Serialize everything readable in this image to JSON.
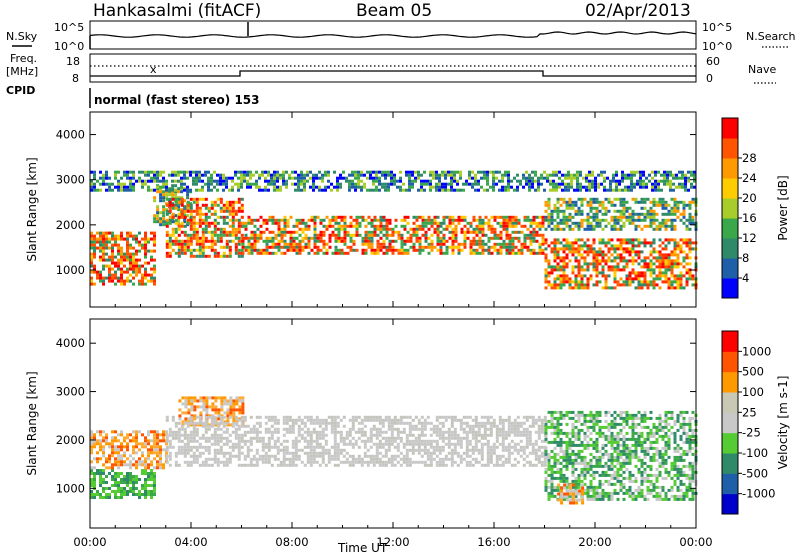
{
  "header": {
    "station": "Hankasalmi (fitACF)",
    "beam": "Beam 05",
    "date": "02/Apr/2013"
  },
  "panel_labels": {
    "nsky": "N.Sky",
    "nsearch": "N.Search",
    "freq": "Freq.",
    "mhz": "[MHz]",
    "cpid": "CPID",
    "nave": "Nave",
    "cpid_text": "normal (fast stereo) 153"
  },
  "noise_ticks": {
    "left": [
      "10^5",
      "10^0"
    ],
    "right": [
      "10^5",
      "10^0"
    ]
  },
  "freq_ticks": {
    "left": [
      "18",
      "8"
    ],
    "right": [
      "60",
      "0"
    ]
  },
  "colors": {
    "power_scale": [
      "#0000ff",
      "#1f5fa8",
      "#2f8a6a",
      "#3aa84a",
      "#a8cc2a",
      "#ffcc00",
      "#ff9900",
      "#ff5500",
      "#ff0000"
    ],
    "velocity_scale": [
      "#ff0000",
      "#ff5500",
      "#ff9900",
      "#c8c8b4",
      "#c8c8c8",
      "#55cc33",
      "#2f8a6a",
      "#1f5fa8",
      "#0000cc"
    ],
    "ground_scatter": "#c8c8c8"
  },
  "chart_data": [
    {
      "type": "heatmap",
      "title": "",
      "xlabel": "",
      "ylabel": "Slant Range [km]",
      "ylim": [
        180,
        4500
      ],
      "xlim": [
        0,
        24
      ],
      "y_ticks": [
        "1000",
        "2000",
        "3000",
        "4000"
      ],
      "colorbar_label": "Power [dB]",
      "colorbar_ticks": [
        "4",
        "8",
        "12",
        "16",
        "20",
        "24",
        "28"
      ],
      "regions_hours_km": [
        {
          "t": [
            0.0,
            2.5
          ],
          "range": [
            700,
            1850
          ],
          "level": "high"
        },
        {
          "t": [
            2.5,
            4.0
          ],
          "range": [
            2000,
            2900
          ],
          "level": "mid"
        },
        {
          "t": [
            3.0,
            6.0
          ],
          "range": [
            1300,
            2600
          ],
          "level": "high"
        },
        {
          "t": [
            6.0,
            18.0
          ],
          "range": [
            1400,
            2200
          ],
          "level": "high"
        },
        {
          "t": [
            18.0,
            24.0
          ],
          "range": [
            600,
            1700
          ],
          "level": "high"
        },
        {
          "t": [
            18.0,
            24.0
          ],
          "range": [
            1900,
            2600
          ],
          "level": "mid"
        },
        {
          "t": [
            0.0,
            24.0
          ],
          "range": [
            2800,
            3200
          ],
          "level": "low"
        }
      ]
    },
    {
      "type": "heatmap",
      "title": "",
      "xlabel": "Time UT",
      "ylabel": "Slant Range [km]",
      "ylim": [
        180,
        4500
      ],
      "xlim": [
        0,
        24
      ],
      "x_ticks": [
        "00:00",
        "04:00",
        "08:00",
        "12:00",
        "16:00",
        "20:00",
        "00:00"
      ],
      "y_ticks": [
        "1000",
        "2000",
        "3000",
        "4000"
      ],
      "colorbar_label": "Velocity [m s-1]",
      "colorbar_ticks": [
        "1000",
        "500",
        "100",
        "25",
        "-25",
        "-100",
        "-500",
        "-1000"
      ],
      "regions_hours_km": [
        {
          "t": [
            0.0,
            2.5
          ],
          "range": [
            800,
            1400
          ],
          "level": "toward_100"
        },
        {
          "t": [
            0.0,
            3.0
          ],
          "range": [
            1400,
            2200
          ],
          "level": "away_500"
        },
        {
          "t": [
            3.5,
            6.0
          ],
          "range": [
            2300,
            2900
          ],
          "level": "away_500"
        },
        {
          "t": [
            3.0,
            18.0
          ],
          "range": [
            1500,
            2500
          ],
          "level": "ground"
        },
        {
          "t": [
            18.0,
            24.0
          ],
          "range": [
            800,
            2600
          ],
          "level": "toward_500"
        },
        {
          "t": [
            18.5,
            19.5
          ],
          "range": [
            700,
            1100
          ],
          "level": "away_500"
        }
      ]
    }
  ]
}
